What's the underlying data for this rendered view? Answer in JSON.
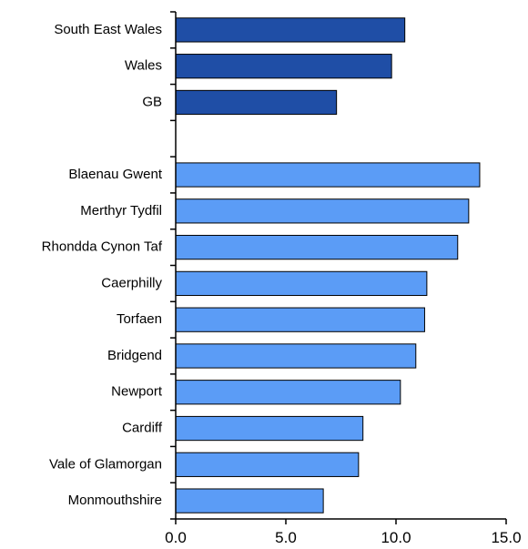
{
  "chart_data": {
    "type": "bar",
    "orientation": "horizontal",
    "title": "",
    "xlabel": "",
    "ylabel": "",
    "xlim": [
      0,
      15
    ],
    "xticks": [
      0,
      5,
      10,
      15
    ],
    "xtick_labels": [
      "0.0",
      "5.0",
      "10.0",
      "15.0"
    ],
    "grid": false,
    "legend": "none",
    "groups": [
      {
        "color": "#1f4ea6",
        "categories": [
          "South East Wales",
          "Wales",
          "GB"
        ],
        "values": [
          10.4,
          9.8,
          7.3
        ]
      },
      {
        "color": "#5b9cf6",
        "categories": [
          "Blaenau Gwent",
          "Merthyr Tydfil",
          "Rhondda Cynon Taf",
          "Caerphilly",
          "Torfaen",
          "Bridgend",
          "Newport",
          "Cardiff",
          "Vale of Glamorgan",
          "Monmouthshire"
        ],
        "values": [
          13.8,
          13.3,
          12.8,
          11.4,
          11.3,
          10.9,
          10.2,
          8.5,
          8.3,
          6.7
        ]
      }
    ]
  }
}
